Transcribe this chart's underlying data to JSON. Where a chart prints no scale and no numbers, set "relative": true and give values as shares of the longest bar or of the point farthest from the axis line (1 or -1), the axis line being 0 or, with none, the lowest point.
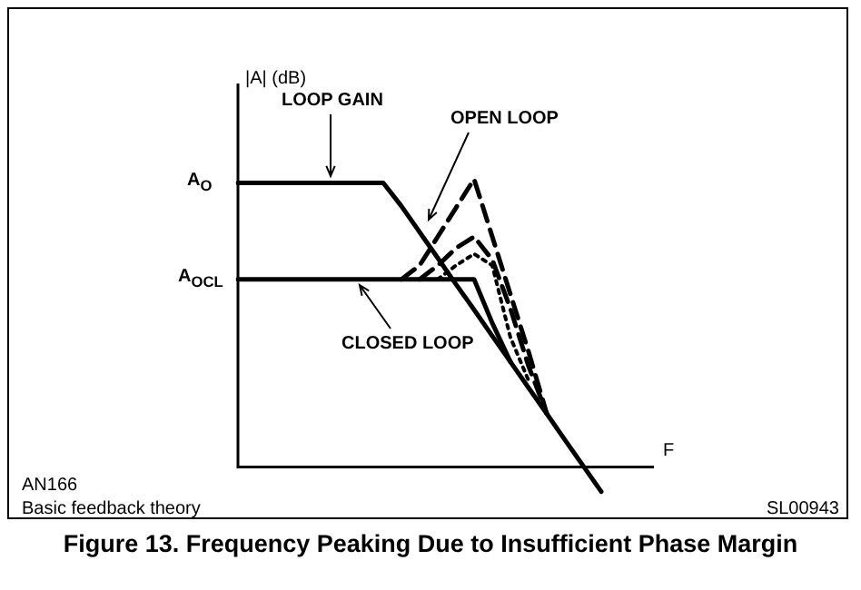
{
  "chart_data": {
    "type": "line",
    "relative": true,
    "title": "Figure 13.  Frequency Peaking Due to Insufficient Phase Margin",
    "ylabel": "|A| (dB)",
    "xlabel": "F",
    "categories": [
      null,
      null,
      null,
      null,
      null,
      null,
      null,
      null,
      null,
      null,
      null,
      null,
      null,
      null,
      null,
      null,
      null,
      null,
      null,
      null,
      null,
      null,
      null
    ],
    "series": [
      {
        "color": "#000000",
        "line_style": "solid",
        "values": [
          0.987,
          0.987,
          0.987,
          0.987,
          0.987,
          0.987,
          0.987,
          0.987,
          0.987,
          0.906,
          0.816,
          0.726,
          0.635,
          0.546,
          0.455,
          0.365,
          0.275,
          0.185,
          0.094,
          0.004,
          -0.086,
          null,
          null
        ]
      },
      {
        "color": "#000000",
        "line_style": "solid",
        "values": [
          0.652,
          0.652,
          0.652,
          0.652,
          0.652,
          0.652,
          0.652,
          0.652,
          0.652,
          0.652,
          0.652,
          0.652,
          0.652,
          0.652,
          0.5,
          0.365,
          null,
          null,
          null,
          null,
          null,
          null,
          null
        ]
      },
      {
        "color": "#000000",
        "line_style": "dashed",
        "values": [
          null,
          null,
          null,
          null,
          null,
          null,
          null,
          null,
          null,
          0.652,
          0.7,
          0.8,
          0.9,
          1.0,
          0.8,
          0.6,
          0.4,
          0.185,
          null,
          null,
          null,
          null,
          null
        ]
      },
      {
        "color": "#000000",
        "line_style": "dashed",
        "values": [
          null,
          null,
          null,
          null,
          null,
          null,
          null,
          null,
          null,
          null,
          0.652,
          0.7,
          0.76,
          0.8,
          0.72,
          0.55,
          0.35,
          0.185,
          null,
          null,
          null,
          null,
          null
        ]
      },
      {
        "color": "#000000",
        "line_style": "dotted",
        "values": [
          null,
          null,
          null,
          null,
          null,
          null,
          null,
          null,
          null,
          null,
          null,
          0.652,
          0.7,
          0.74,
          0.7,
          0.45,
          0.3,
          null,
          null,
          null,
          null,
          null,
          null
        ]
      }
    ],
    "marker": "none",
    "legend": false,
    "annotations": [
      "A$_{O}$",
      "A$_{OCL}$",
      "LOOP GAIN",
      "OPEN LOOP",
      "CLOSED LOOP",
      "AN166",
      "Basic feedback theory",
      "SL00943"
    ]
  }
}
